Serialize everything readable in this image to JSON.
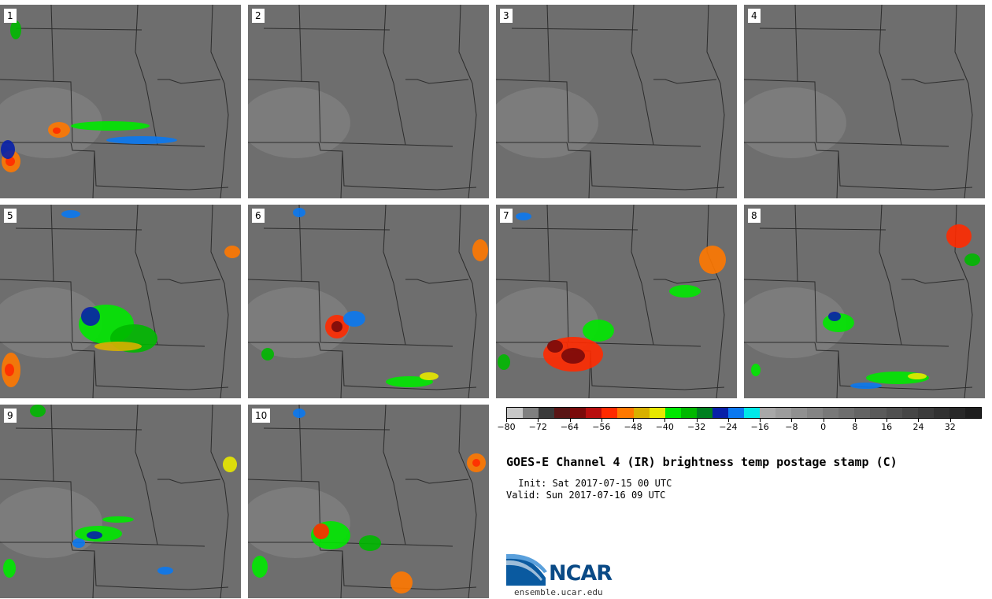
{
  "figure": {
    "title": "GOES-E Channel 4 (IR) brightness temp postage stamp (C)",
    "init": " Init: Sat 2017-07-15 00 UTC",
    "valid": "Valid: Sun 2017-07-16 09 UTC",
    "site": "ensemble.ucar.edu",
    "logo": "NCAR"
  },
  "panels": [
    {
      "label": "1"
    },
    {
      "label": "2"
    },
    {
      "label": "3"
    },
    {
      "label": "4"
    },
    {
      "label": "5"
    },
    {
      "label": "6"
    },
    {
      "label": "7"
    },
    {
      "label": "8"
    },
    {
      "label": "9"
    },
    {
      "label": "10"
    }
  ],
  "colorbar": {
    "min": -80,
    "max": 40,
    "step": 4,
    "tick_labels": [
      "−80",
      "−72",
      "−64",
      "−56",
      "−48",
      "−40",
      "−32",
      "−24",
      "−16",
      "−8",
      "0",
      "8",
      "16",
      "24",
      "32"
    ],
    "tick_values": [
      -80,
      -72,
      -64,
      -56,
      -48,
      -40,
      -32,
      -24,
      -16,
      -8,
      0,
      8,
      16,
      24,
      32
    ],
    "colors": [
      "#c8c8c8",
      "#808080",
      "#3a3a3a",
      "#5a1616",
      "#7a0a0a",
      "#b80e0e",
      "#ff2a00",
      "#ff7800",
      "#d8b000",
      "#e8e800",
      "#00e800",
      "#00b800",
      "#008020",
      "#0820a8",
      "#0a78f0",
      "#00e8e8",
      "#a8a8a8",
      "#9c9c9c",
      "#909090",
      "#848484",
      "#787878",
      "#6e6e6e",
      "#646464",
      "#5a5a5a",
      "#505050",
      "#464646",
      "#3c3c3c",
      "#323232",
      "#282828",
      "#1e1e1e"
    ]
  },
  "storms": [
    [
      [
        75,
        165,
        14,
        10,
        "#ff7800"
      ],
      [
        72,
        166,
        5,
        4,
        "#ff2a00"
      ],
      [
        14,
        205,
        12,
        14,
        "#ff7800"
      ],
      [
        13,
        205,
        6,
        6,
        "#ff2a00"
      ],
      [
        10,
        190,
        9,
        12,
        "#0820a8"
      ],
      [
        20,
        38,
        7,
        12,
        "#00b800"
      ],
      [
        140,
        160,
        50,
        6,
        "#00e800"
      ],
      [
        180,
        178,
        45,
        5,
        "#0a78f0"
      ]
    ],
    [
      [
        118,
        163,
        34,
        25,
        "#ff7800"
      ],
      [
        118,
        163,
        18,
        12,
        "#ff2a00"
      ],
      [
        112,
        160,
        6,
        5,
        "#7a0a0a"
      ],
      [
        200,
        228,
        20,
        9,
        "#ff7800"
      ],
      [
        10,
        218,
        8,
        10,
        "#ff7800"
      ],
      [
        40,
        205,
        12,
        12,
        "#00b800"
      ],
      [
        280,
        155,
        30,
        5,
        "#00e800"
      ],
      [
        180,
        225,
        15,
        10,
        "#00e800"
      ]
    ],
    [
      [
        103,
        178,
        18,
        14,
        "#ff2a00"
      ],
      [
        103,
        178,
        8,
        6,
        "#7a0a0a"
      ],
      [
        103,
        140,
        22,
        15,
        "#00e800"
      ],
      [
        290,
        62,
        17,
        15,
        "#ff7800"
      ],
      [
        80,
        20,
        18,
        12,
        "#00b800"
      ],
      [
        190,
        210,
        12,
        16,
        "#00e800"
      ],
      [
        20,
        205,
        8,
        10,
        "#00b800"
      ],
      [
        210,
        190,
        20,
        8,
        "#0a78f0"
      ]
    ],
    [
      [
        120,
        160,
        14,
        12,
        "#ff2a00"
      ],
      [
        100,
        150,
        12,
        10,
        "#00e800"
      ],
      [
        185,
        205,
        28,
        10,
        "#ff7800"
      ],
      [
        170,
        210,
        12,
        7,
        "#ff2a00"
      ],
      [
        15,
        205,
        10,
        24,
        "#00e800"
      ],
      [
        290,
        60,
        10,
        6,
        "#ff7800"
      ],
      [
        260,
        128,
        8,
        4,
        "#0820a8"
      ],
      [
        275,
        240,
        6,
        5,
        "#00e800"
      ]
    ],
    [
      [
        135,
        412,
        35,
        25,
        "#00e800"
      ],
      [
        115,
        402,
        12,
        12,
        "#0820a8"
      ],
      [
        170,
        430,
        30,
        18,
        "#00b800"
      ],
      [
        14,
        470,
        12,
        22,
        "#ff7800"
      ],
      [
        12,
        470,
        6,
        8,
        "#ff2a00"
      ],
      [
        295,
        320,
        10,
        8,
        "#ff7800"
      ],
      [
        90,
        272,
        12,
        5,
        "#0a78f0"
      ],
      [
        150,
        440,
        30,
        6,
        "#d8b000"
      ]
    ],
    [
      [
        428,
        415,
        15,
        15,
        "#ff2a00"
      ],
      [
        428,
        415,
        7,
        7,
        "#7a0a0a"
      ],
      [
        610,
        318,
        10,
        14,
        "#ff7800"
      ],
      [
        520,
        485,
        30,
        7,
        "#00e800"
      ],
      [
        545,
        478,
        12,
        5,
        "#e8e800"
      ],
      [
        380,
        270,
        8,
        6,
        "#0a78f0"
      ],
      [
        340,
        450,
        8,
        8,
        "#00b800"
      ],
      [
        450,
        405,
        14,
        10,
        "#0a78f0"
      ]
    ],
    [
      [
        728,
        450,
        38,
        22,
        "#ff2a00"
      ],
      [
        728,
        452,
        15,
        10,
        "#7a0a0a"
      ],
      [
        705,
        440,
        10,
        8,
        "#7a0a0a"
      ],
      [
        905,
        330,
        17,
        18,
        "#ff7800"
      ],
      [
        870,
        370,
        20,
        8,
        "#00e800"
      ],
      [
        760,
        420,
        20,
        14,
        "#00e800"
      ],
      [
        665,
        275,
        10,
        5,
        "#0a78f0"
      ],
      [
        640,
        460,
        8,
        10,
        "#00b800"
      ]
    ],
    [
      [
        1218,
        300,
        16,
        15,
        "#ff2a00"
      ],
      [
        1065,
        410,
        20,
        12,
        "#00e800"
      ],
      [
        1060,
        402,
        8,
        6,
        "#0820a8"
      ],
      [
        1140,
        480,
        40,
        8,
        "#00e800"
      ],
      [
        1165,
        478,
        12,
        4,
        "#e8e800"
      ],
      [
        960,
        470,
        6,
        8,
        "#00e800"
      ],
      [
        1235,
        330,
        10,
        8,
        "#00b800"
      ],
      [
        1100,
        490,
        20,
        4,
        "#0a78f0"
      ]
    ],
    [
      [
        125,
        678,
        30,
        10,
        "#00e800"
      ],
      [
        120,
        680,
        10,
        5,
        "#0820a8"
      ],
      [
        48,
        522,
        10,
        8,
        "#00b800"
      ],
      [
        292,
        590,
        9,
        10,
        "#e8e800"
      ],
      [
        12,
        722,
        8,
        12,
        "#00e800"
      ],
      [
        210,
        725,
        10,
        5,
        "#0a78f0"
      ],
      [
        100,
        690,
        8,
        6,
        "#0a78f0"
      ],
      [
        150,
        660,
        20,
        4,
        "#00e800"
      ]
    ],
    [
      [
        420,
        680,
        25,
        18,
        "#00e800"
      ],
      [
        408,
        675,
        10,
        10,
        "#ff2a00"
      ],
      [
        605,
        588,
        12,
        12,
        "#ff7800"
      ],
      [
        605,
        588,
        5,
        5,
        "#ff2a00"
      ],
      [
        510,
        740,
        14,
        14,
        "#ff7800"
      ],
      [
        330,
        720,
        10,
        14,
        "#00e800"
      ],
      [
        470,
        690,
        14,
        10,
        "#00b800"
      ],
      [
        380,
        525,
        8,
        6,
        "#0a78f0"
      ]
    ]
  ]
}
